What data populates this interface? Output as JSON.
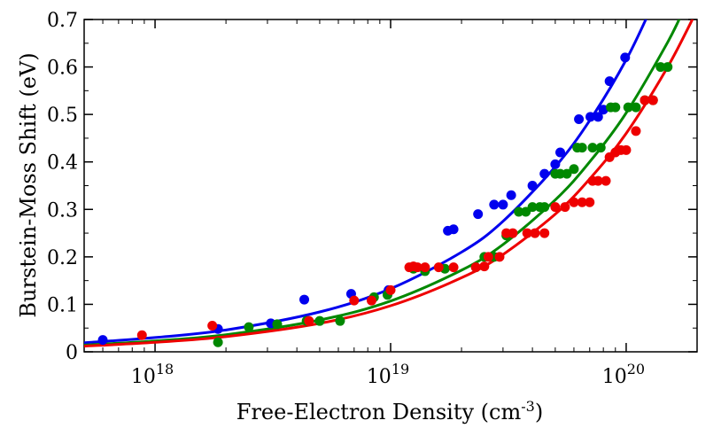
{
  "chart_data": {
    "type": "scatter",
    "title": "",
    "xlabel": "Free-Electron Density (cm",
    "xlabel_sup": "-3",
    "xlabel_close": ")",
    "ylabel": "Burstein-Moss Shift (eV)",
    "xscale": "log",
    "xlim": [
      5e+17,
      2e+20
    ],
    "ylim": [
      0,
      0.7
    ],
    "grid": false,
    "legend": "none",
    "y_ticks": [
      0,
      0.1,
      0.2,
      0.3,
      0.4,
      0.5,
      0.6,
      0.7
    ],
    "y_tick_labels": [
      "0",
      "0.1",
      "0.2",
      "0.3",
      "0.4",
      "0.5",
      "0.6",
      "0.7"
    ],
    "x_ticks": [
      1e+18,
      1e+19,
      1e+20
    ],
    "x_tick_bases": [
      "10",
      "10",
      "10"
    ],
    "x_tick_exps": [
      "18",
      "19",
      "20"
    ],
    "series": [
      {
        "name": "blue",
        "color": "#0000ee",
        "points": [
          [
            6e+17,
            0.025
          ],
          [
            1.85e+18,
            0.048
          ],
          [
            3.1e+18,
            0.06
          ],
          [
            4.3e+18,
            0.11
          ],
          [
            6.8e+18,
            0.122
          ],
          [
            9.8e+18,
            0.13
          ],
          [
            1.75e+19,
            0.255
          ],
          [
            1.85e+19,
            0.258
          ],
          [
            2.35e+19,
            0.29
          ],
          [
            2.75e+19,
            0.31
          ],
          [
            3e+19,
            0.31
          ],
          [
            3.25e+19,
            0.33
          ],
          [
            4e+19,
            0.35
          ],
          [
            4.5e+19,
            0.375
          ],
          [
            5e+19,
            0.395
          ],
          [
            5.25e+19,
            0.42
          ],
          [
            6.3e+19,
            0.49
          ],
          [
            7.05e+19,
            0.495
          ],
          [
            7.6e+19,
            0.495
          ],
          [
            8e+19,
            0.51
          ],
          [
            8.5e+19,
            0.57
          ],
          [
            9.9e+19,
            0.62
          ]
        ],
        "curve": [
          [
            5e+17,
            0.019
          ],
          [
            1e+18,
            0.03
          ],
          [
            2e+18,
            0.046
          ],
          [
            5e+18,
            0.084
          ],
          [
            1e+19,
            0.133
          ],
          [
            2e+19,
            0.21
          ],
          [
            3e+19,
            0.275
          ],
          [
            5e+19,
            0.39
          ],
          [
            7e+19,
            0.487
          ],
          [
            1e+20,
            0.615
          ],
          [
            1.3e+20,
            0.733
          ]
        ]
      },
      {
        "name": "green",
        "color": "#008800",
        "points": [
          [
            1.85e+18,
            0.02
          ],
          [
            2.5e+18,
            0.052
          ],
          [
            3.3e+18,
            0.058
          ],
          [
            4.4e+18,
            0.065
          ],
          [
            5e+18,
            0.065
          ],
          [
            6.1e+18,
            0.065
          ],
          [
            8.5e+18,
            0.115
          ],
          [
            9.7e+18,
            0.12
          ],
          [
            1.25e+19,
            0.175
          ],
          [
            1.4e+19,
            0.17
          ],
          [
            1.7e+19,
            0.175
          ],
          [
            2.3e+19,
            0.178
          ],
          [
            2.5e+19,
            0.2
          ],
          [
            2.75e+19,
            0.2
          ],
          [
            3.1e+19,
            0.245
          ],
          [
            3.5e+19,
            0.295
          ],
          [
            3.75e+19,
            0.295
          ],
          [
            4e+19,
            0.305
          ],
          [
            4.3e+19,
            0.305
          ],
          [
            4.5e+19,
            0.305
          ],
          [
            5e+19,
            0.375
          ],
          [
            5.25e+19,
            0.375
          ],
          [
            5.6e+19,
            0.375
          ],
          [
            6e+19,
            0.385
          ],
          [
            6.2e+19,
            0.43
          ],
          [
            6.5e+19,
            0.43
          ],
          [
            7.2e+19,
            0.43
          ],
          [
            7.8e+19,
            0.43
          ],
          [
            8.6e+19,
            0.515
          ],
          [
            9e+19,
            0.515
          ],
          [
            1.02e+20,
            0.515
          ],
          [
            1.1e+20,
            0.515
          ],
          [
            1.2e+20,
            0.53
          ],
          [
            1.3e+20,
            0.53
          ],
          [
            1.4e+20,
            0.6
          ],
          [
            1.5e+20,
            0.6
          ]
        ],
        "curve": [
          [
            5e+17,
            0.014
          ],
          [
            1e+18,
            0.023
          ],
          [
            2e+18,
            0.036
          ],
          [
            5e+18,
            0.067
          ],
          [
            1e+19,
            0.107
          ],
          [
            2e+19,
            0.172
          ],
          [
            3e+19,
            0.226
          ],
          [
            5e+19,
            0.32
          ],
          [
            7e+19,
            0.4
          ],
          [
            1e+20,
            0.503
          ],
          [
            1.5e+20,
            0.652
          ],
          [
            1.75e+20,
            0.72
          ]
        ]
      },
      {
        "name": "red",
        "color": "#ee0000",
        "points": [
          [
            8.8e+17,
            0.035
          ],
          [
            1.75e+18,
            0.055
          ],
          [
            4.5e+18,
            0.065
          ],
          [
            7e+18,
            0.108
          ],
          [
            8.3e+18,
            0.108
          ],
          [
            1e+19,
            0.13
          ],
          [
            1.2e+19,
            0.178
          ],
          [
            1.25e+19,
            0.18
          ],
          [
            1.3e+19,
            0.178
          ],
          [
            1.4e+19,
            0.178
          ],
          [
            1.6e+19,
            0.178
          ],
          [
            1.85e+19,
            0.178
          ],
          [
            2.3e+19,
            0.178
          ],
          [
            2.5e+19,
            0.18
          ],
          [
            2.6e+19,
            0.2
          ],
          [
            2.9e+19,
            0.2
          ],
          [
            3.1e+19,
            0.25
          ],
          [
            3.3e+19,
            0.25
          ],
          [
            3.8e+19,
            0.25
          ],
          [
            4.1e+19,
            0.25
          ],
          [
            4.5e+19,
            0.25
          ],
          [
            5e+19,
            0.305
          ],
          [
            5.5e+19,
            0.305
          ],
          [
            6e+19,
            0.315
          ],
          [
            6.5e+19,
            0.315
          ],
          [
            7e+19,
            0.315
          ],
          [
            7.2e+19,
            0.36
          ],
          [
            7.6e+19,
            0.36
          ],
          [
            8.2e+19,
            0.36
          ],
          [
            8.5e+19,
            0.41
          ],
          [
            9e+19,
            0.42
          ],
          [
            9.5e+19,
            0.425
          ],
          [
            1e+20,
            0.425
          ],
          [
            1.1e+20,
            0.465
          ],
          [
            1.2e+20,
            0.53
          ],
          [
            1.3e+20,
            0.53
          ]
        ],
        "curve": [
          [
            5e+17,
            0.012
          ],
          [
            1e+18,
            0.02
          ],
          [
            2e+18,
            0.032
          ],
          [
            5e+18,
            0.06
          ],
          [
            1e+19,
            0.097
          ],
          [
            2e+19,
            0.156
          ],
          [
            3e+19,
            0.205
          ],
          [
            5e+19,
            0.29
          ],
          [
            7e+19,
            0.364
          ],
          [
            1e+20,
            0.46
          ],
          [
            1.5e+20,
            0.6
          ],
          [
            2e+20,
            0.72
          ]
        ]
      }
    ]
  }
}
